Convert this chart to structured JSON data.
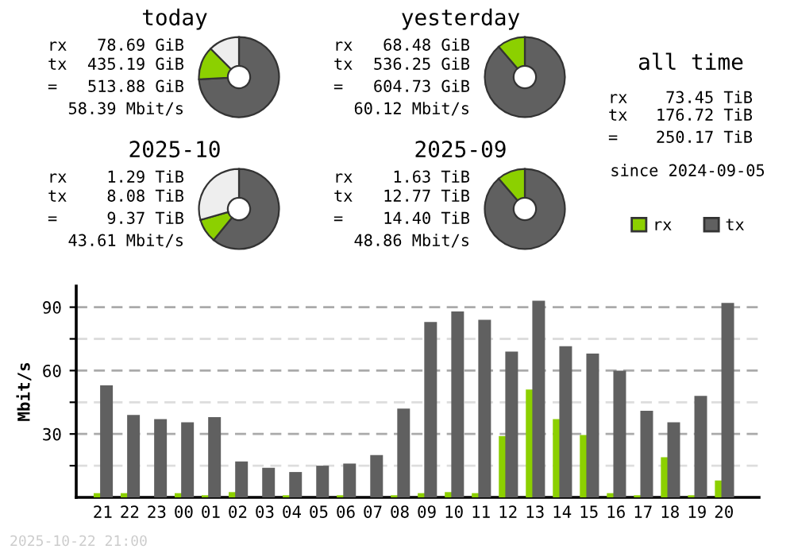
{
  "chart_data": [
    {
      "type": "donut",
      "title": "today",
      "categories": [
        null,
        null,
        null
      ],
      "values": [
        74.1,
        13.4,
        12.5
      ],
      "colors": [
        "#606060",
        "#8cd000",
        "#eeeeee"
      ],
      "annotations": [
        "rx",
        "78.69 GiB",
        "tx",
        "435.19 GiB",
        "=",
        "513.88 GiB",
        "58.39 Mbit/s"
      ]
    },
    {
      "type": "donut",
      "title": "yesterday",
      "categories": [
        null,
        null
      ],
      "values": [
        88.7,
        11.3
      ],
      "colors": [
        "#606060",
        "#8cd000"
      ],
      "annotations": [
        "rx",
        "68.48 GiB",
        "tx",
        "536.25 GiB",
        "=",
        "604.73 GiB",
        "60.12 Mbit/s"
      ]
    },
    {
      "type": "other",
      "title": "all time",
      "annotations": [
        "rx",
        "73.45 TiB",
        "tx",
        "176.72 TiB",
        "=",
        "250.17 TiB",
        "since 2024-09-05"
      ]
    },
    {
      "type": "donut",
      "title": "2025-10",
      "categories": [
        null,
        null,
        null
      ],
      "values": [
        60.9,
        9.7,
        29.4
      ],
      "colors": [
        "#606060",
        "#8cd000",
        "#eeeeee"
      ],
      "annotations": [
        "rx",
        "1.29 TiB",
        "tx",
        "8.08 TiB",
        "=",
        "9.37 TiB",
        "43.61 Mbit/s"
      ]
    },
    {
      "type": "donut",
      "title": "2025-09",
      "categories": [
        null,
        null
      ],
      "values": [
        88.7,
        11.3
      ],
      "colors": [
        "#606060",
        "#8cd000"
      ],
      "annotations": [
        "rx",
        "1.63 TiB",
        "tx",
        "12.77 TiB",
        "=",
        "14.40 TiB",
        "48.86 Mbit/s"
      ]
    },
    {
      "type": "bar",
      "categories": [
        "21",
        "22",
        "23",
        "00",
        "01",
        "02",
        "03",
        "04",
        "05",
        "06",
        "07",
        "08",
        "09",
        "10",
        "11",
        "12",
        "13",
        "14",
        "15",
        "16",
        "17",
        "18",
        "19",
        "20"
      ],
      "series": [
        {
          "name": "rx",
          "color": "#8cd000",
          "values": [
            2,
            2,
            0,
            2,
            1,
            2.5,
            0,
            1,
            0,
            1,
            0,
            1,
            2,
            2.5,
            2,
            29,
            51,
            37,
            29.5,
            2,
            1,
            19,
            1,
            8
          ]
        },
        {
          "name": "tx",
          "color": "#606060",
          "values": [
            53,
            39,
            37,
            35.5,
            38,
            17,
            14,
            12,
            15,
            16,
            20,
            42,
            83,
            88,
            84,
            69,
            93,
            71.5,
            68,
            60,
            41,
            35.5,
            48,
            92
          ]
        }
      ],
      "ylabel": "Mbit/s",
      "ylim": [
        0,
        100
      ],
      "yticks": [
        {
          "value": 15,
          "label": null
        },
        30,
        {
          "value": 45,
          "label": null
        },
        60,
        {
          "value": 75,
          "label": null
        },
        90
      ],
      "grid": "y",
      "legend": "top right",
      "annotations": [
        "2025-10-22 21:00"
      ]
    }
  ]
}
